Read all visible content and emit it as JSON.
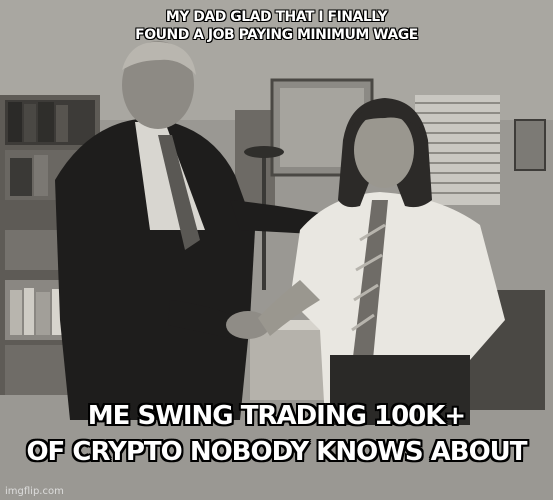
{
  "meme": {
    "top_text": [
      "MY DAD GLAD THAT I FINALLY",
      "FOUND A JOB PAYING MINIMUM WAGE"
    ],
    "bottom_text": [
      "ME SWING TRADING 100K+",
      "OF CRYPTO NOBODY KNOWS ABOUT"
    ],
    "watermark": "imgflip.com"
  }
}
